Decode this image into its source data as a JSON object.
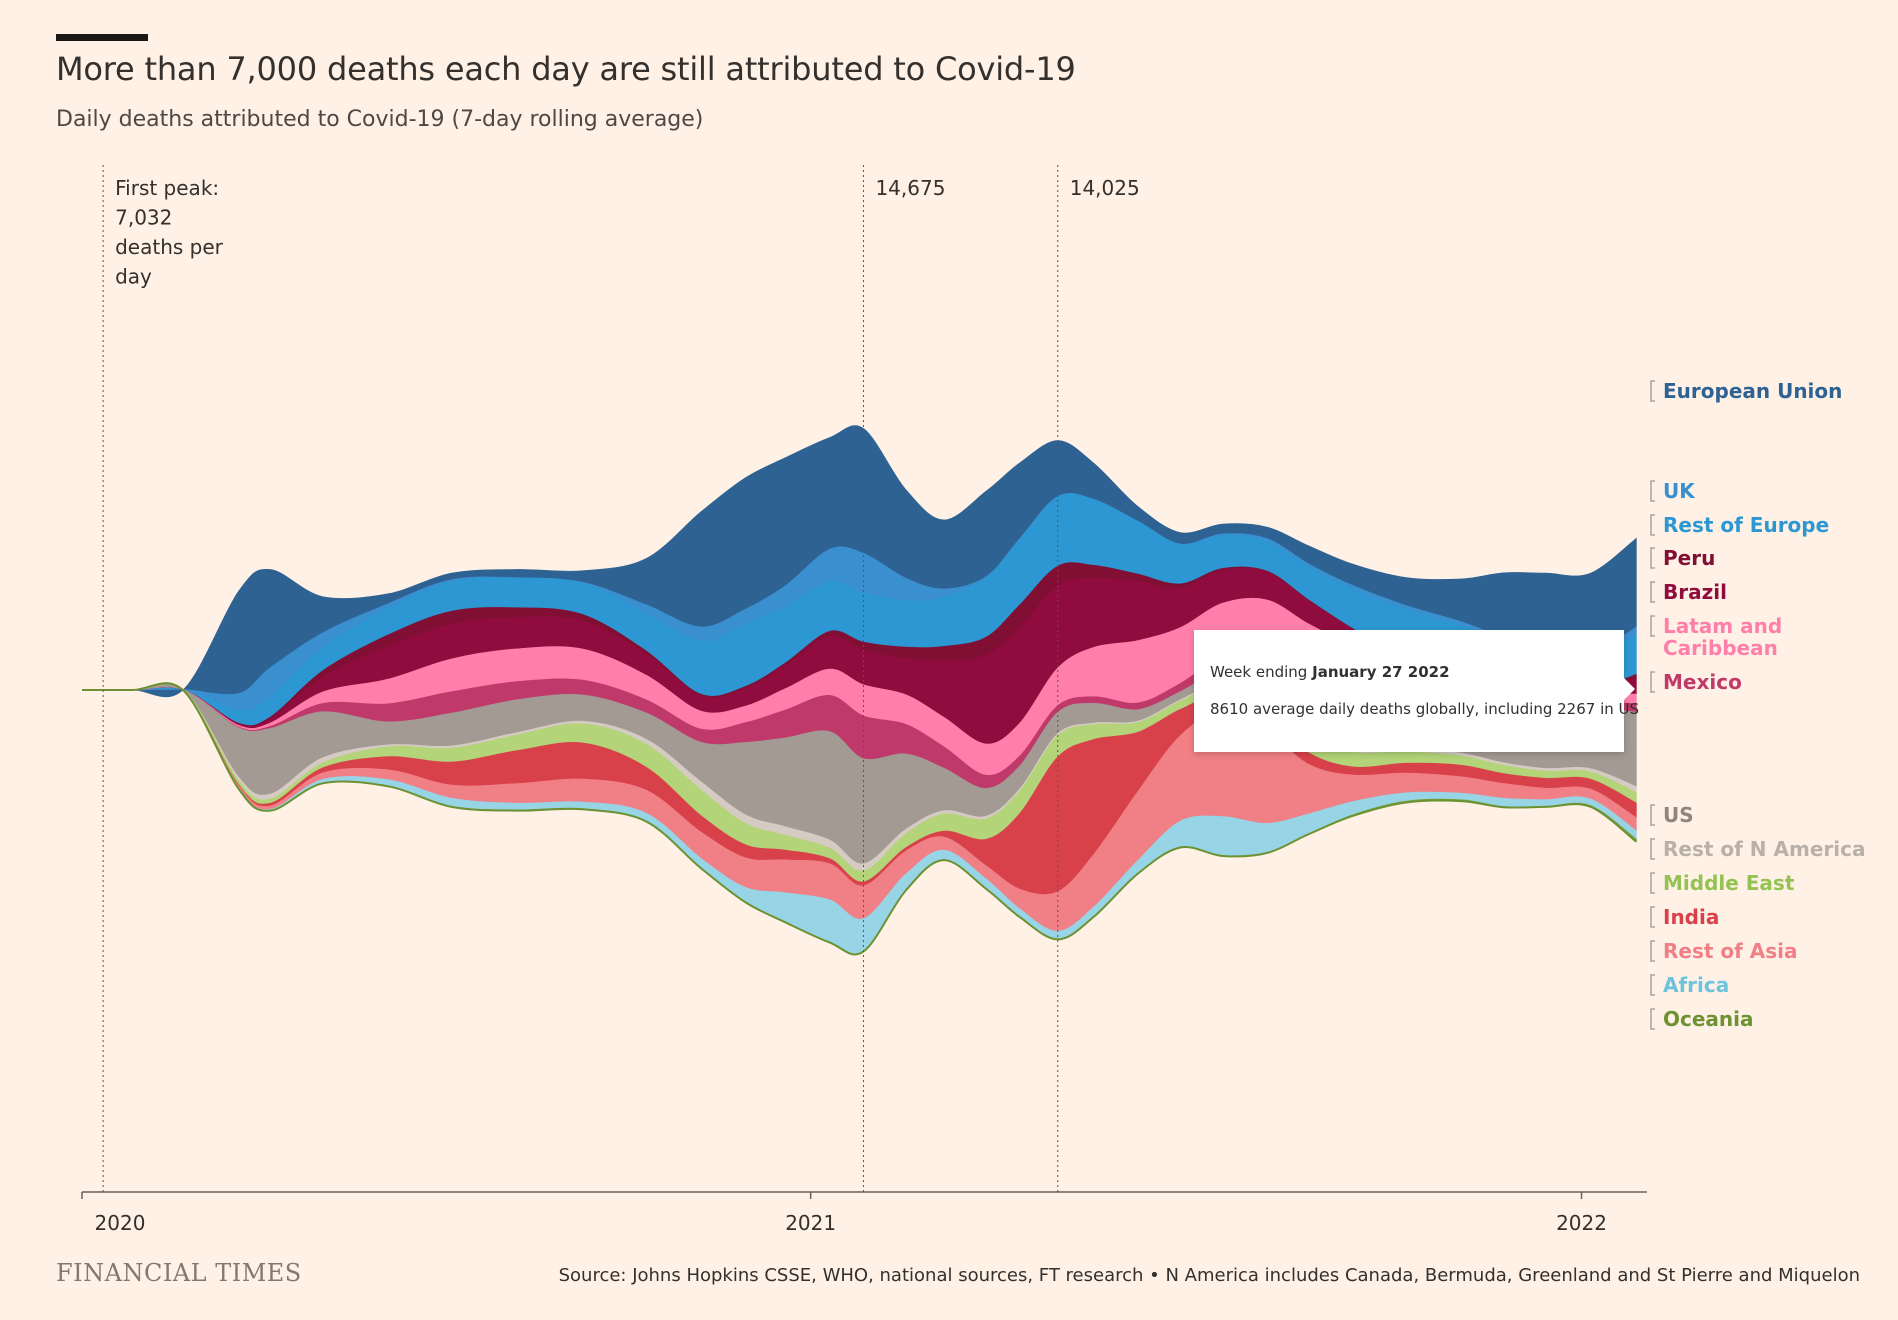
{
  "header": {
    "title": "More than 7,000 deaths each day are still attributed to Covid-19",
    "subtitle": "Daily deaths attributed to Covid-19 (7-day rolling average)"
  },
  "footer": {
    "brand": "FINANCIAL TIMES",
    "source": "Source: Johns Hopkins CSSE, WHO, national sources, FT research • N America includes Canada, Bermuda, Greenland and St Pierre and Miquelon"
  },
  "tooltip": {
    "prefix": "Week ending",
    "date": "January 27 2022",
    "text": "8610 average daily deaths globally, including 2267 in US"
  },
  "chart_data": {
    "type": "area",
    "subtype": "streamgraph",
    "x_ticks": [
      "2020",
      "2021",
      "2022"
    ],
    "x_range": [
      "2020-01-22",
      "2022-02-01"
    ],
    "annotations": [
      {
        "date": "2020-02-01",
        "lines": [
          "First peak:",
          "7,032",
          "deaths per",
          "day"
        ]
      },
      {
        "date": "2021-01-26",
        "lines": [
          "14,675"
        ]
      },
      {
        "date": "2021-04-28",
        "lines": [
          "14,025"
        ]
      }
    ],
    "x": [
      "2020-01-22",
      "2020-02-15",
      "2020-03-10",
      "2020-04-05",
      "2020-04-20",
      "2020-05-15",
      "2020-06-15",
      "2020-07-15",
      "2020-08-15",
      "2020-09-15",
      "2020-10-15",
      "2020-11-10",
      "2020-12-01",
      "2020-12-20",
      "2021-01-10",
      "2021-01-26",
      "2021-02-15",
      "2021-03-05",
      "2021-03-25",
      "2021-04-10",
      "2021-04-28",
      "2021-05-15",
      "2021-06-05",
      "2021-06-25",
      "2021-07-15",
      "2021-08-05",
      "2021-08-25",
      "2021-09-15",
      "2021-10-10",
      "2021-11-05",
      "2021-11-25",
      "2021-12-15",
      "2022-01-05",
      "2022-01-27"
    ],
    "series": [
      {
        "name": "European Union",
        "color": "#2e6293",
        "values": [
          0,
          0,
          2,
          3100,
          3000,
          1100,
          300,
          200,
          250,
          350,
          1400,
          3500,
          4000,
          3900,
          3400,
          3800,
          2700,
          2100,
          2600,
          2300,
          1700,
          1100,
          450,
          350,
          300,
          350,
          550,
          650,
          850,
          1300,
          2000,
          2700,
          2500,
          2700
        ]
      },
      {
        "name": "UK",
        "color": "#3a8fcf",
        "values": [
          0,
          0,
          0,
          500,
          900,
          450,
          150,
          60,
          15,
          30,
          250,
          450,
          450,
          650,
          1000,
          1200,
          700,
          250,
          40,
          20,
          20,
          10,
          10,
          15,
          50,
          90,
          100,
          120,
          130,
          130,
          110,
          105,
          110,
          240
        ]
      },
      {
        "name": "Rest of Europe",
        "color": "#2c97d3",
        "values": [
          0,
          0,
          1,
          400,
          600,
          700,
          800,
          900,
          900,
          950,
          1150,
          1600,
          1900,
          1700,
          1500,
          1500,
          1400,
          1500,
          1800,
          2000,
          2100,
          2000,
          1600,
          1200,
          1000,
          900,
          1000,
          1200,
          1500,
          1900,
          1700,
          1300,
          1000,
          1200
        ]
      },
      {
        "name": "Peru",
        "color": "#800f33",
        "values": [
          0,
          0,
          0,
          5,
          60,
          200,
          350,
          400,
          300,
          200,
          90,
          60,
          50,
          80,
          150,
          250,
          350,
          450,
          550,
          700,
          600,
          400,
          220,
          130,
          60,
          30,
          30,
          25,
          20,
          20,
          20,
          20,
          30,
          100
        ]
      },
      {
        "name": "Brazil",
        "color": "#900c3f",
        "values": [
          0,
          0,
          0,
          60,
          120,
          450,
          1000,
          1050,
          950,
          850,
          650,
          450,
          550,
          700,
          1000,
          1050,
          1100,
          1700,
          2700,
          2900,
          2500,
          2100,
          1800,
          1200,
          1000,
          850,
          700,
          500,
          350,
          250,
          200,
          120,
          100,
          500
        ]
      },
      {
        "name": "Latam and Caribbean",
        "color": "#ff7faa",
        "values": [
          0,
          0,
          1,
          50,
          100,
          350,
          750,
          1000,
          1000,
          950,
          750,
          550,
          500,
          650,
          800,
          950,
          900,
          900,
          950,
          1000,
          1150,
          1500,
          1900,
          1700,
          1600,
          1300,
          900,
          600,
          400,
          300,
          250,
          200,
          200,
          300
        ]
      },
      {
        "name": "Mexico",
        "color": "#c0396b",
        "values": [
          0,
          0,
          0,
          20,
          60,
          250,
          550,
          650,
          550,
          450,
          400,
          400,
          600,
          850,
          1100,
          1300,
          900,
          650,
          400,
          300,
          200,
          200,
          200,
          250,
          400,
          650,
          750,
          500,
          350,
          300,
          300,
          200,
          200,
          250
        ]
      },
      {
        "name": "US",
        "color": "#a29a93",
        "values": [
          0,
          0,
          5,
          1500,
          2000,
          1400,
          700,
          1000,
          1000,
          800,
          800,
          1200,
          2200,
          2700,
          3300,
          3200,
          2300,
          1300,
          850,
          700,
          650,
          600,
          350,
          250,
          400,
          1000,
          1600,
          2000,
          1600,
          1100,
          1200,
          1300,
          1800,
          2267
        ]
      },
      {
        "name": "Rest of N America",
        "color": "#d5cbc2",
        "values": [
          0,
          0,
          0,
          100,
          150,
          160,
          60,
          70,
          70,
          80,
          150,
          250,
          260,
          260,
          250,
          220,
          140,
          100,
          80,
          70,
          60,
          50,
          40,
          40,
          50,
          80,
          110,
          120,
          100,
          90,
          80,
          80,
          100,
          180
        ]
      },
      {
        "name": "Middle East",
        "color": "#b3d479",
        "values": [
          0,
          0,
          15,
          120,
          130,
          150,
          300,
          420,
          480,
          580,
          700,
          780,
          650,
          450,
          320,
          330,
          420,
          520,
          620,
          680,
          650,
          450,
          300,
          250,
          340,
          520,
          560,
          450,
          350,
          280,
          250,
          220,
          220,
          320
        ]
      },
      {
        "name": "India",
        "color": "#d8414a",
        "values": [
          0,
          0,
          0,
          30,
          80,
          150,
          400,
          700,
          1000,
          1100,
          700,
          500,
          400,
          300,
          150,
          120,
          100,
          180,
          800,
          2300,
          4100,
          3500,
          1800,
          800,
          500,
          450,
          350,
          250,
          300,
          350,
          300,
          300,
          300,
          450
        ]
      },
      {
        "name": "Rest of Asia",
        "color": "#f07f86",
        "values": [
          0,
          0,
          5,
          80,
          100,
          200,
          300,
          400,
          600,
          700,
          700,
          800,
          900,
          1000,
          1100,
          1000,
          700,
          400,
          400,
          600,
          1200,
          1600,
          2100,
          2600,
          3200,
          2800,
          1500,
          800,
          600,
          500,
          450,
          350,
          300,
          400
        ]
      },
      {
        "name": "Africa",
        "color": "#97d4e6",
        "values": [
          0,
          0,
          0,
          20,
          40,
          120,
          200,
          250,
          200,
          200,
          250,
          300,
          450,
          900,
          1300,
          1000,
          500,
          300,
          300,
          250,
          250,
          300,
          400,
          800,
          1200,
          900,
          600,
          400,
          250,
          200,
          250,
          200,
          200,
          250
        ]
      },
      {
        "name": "Oceania",
        "color": "#7ca140",
        "values": [
          0,
          0,
          0,
          2,
          3,
          2,
          2,
          15,
          25,
          20,
          5,
          2,
          2,
          2,
          2,
          2,
          2,
          2,
          2,
          2,
          2,
          2,
          2,
          2,
          2,
          2,
          15,
          35,
          45,
          40,
          25,
          20,
          40,
          80
        ]
      }
    ]
  }
}
